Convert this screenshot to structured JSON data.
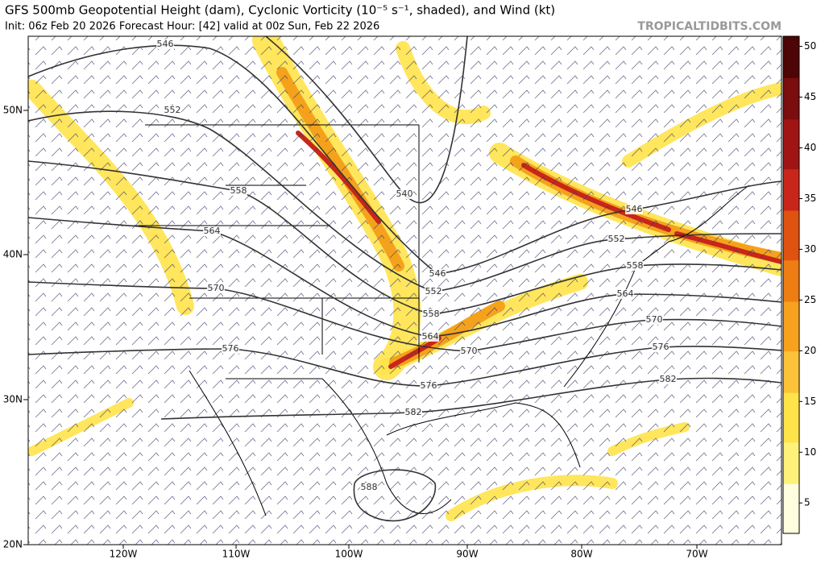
{
  "header": {
    "title": "GFS 500mb Geopotential Height (dam), Cyclonic Vorticity (10⁻⁵ s⁻¹, shaded), and Wind (kt)",
    "subtitle": "Init: 06z Feb 20 2026   Forecast Hour: [42]   valid at 00z Sun, Feb 22 2026",
    "watermark": "TROPICALTIDBITS.COM"
  },
  "map": {
    "lat_labels": [
      "50N",
      "40N",
      "30N",
      "20N"
    ],
    "lon_labels": [
      "120W",
      "110W",
      "100W",
      "90W",
      "80W",
      "70W"
    ],
    "contour_labels": [
      "546",
      "552",
      "558",
      "564",
      "570",
      "576",
      "540",
      "546",
      "552",
      "558",
      "564",
      "570",
      "576",
      "582",
      "588",
      "546",
      "552",
      "558",
      "564",
      "570",
      "576",
      "582"
    ]
  },
  "colorbar": {
    "range": [
      2,
      51
    ],
    "ticks": [
      5,
      10,
      15,
      20,
      25,
      30,
      35,
      40,
      45,
      50
    ]
  }
}
